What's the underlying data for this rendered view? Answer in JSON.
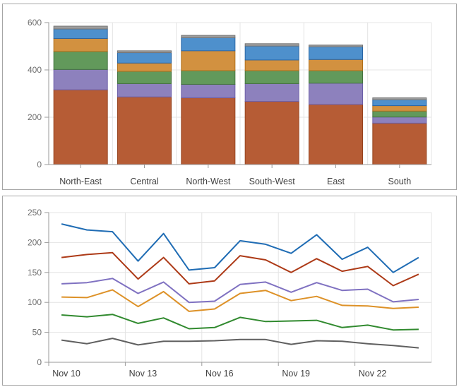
{
  "page": {
    "background": "#ffffff",
    "panel_border_color": "#a6a6a6"
  },
  "axis_style": {
    "grid_color": "#e4e4e4",
    "axis_color": "#9a9a9a",
    "tick_color": "#9a9a9a",
    "number_label_color": "#6e6e6e",
    "category_label_color": "#404040"
  },
  "chart_data": [
    {
      "id": "stacked-bar",
      "type": "bar",
      "stacked": true,
      "title": "",
      "legend": "none",
      "grid": true,
      "categories": [
        "North-East",
        "Central",
        "North-West",
        "South-West",
        "East",
        "South"
      ],
      "series": [
        {
          "name": "rust",
          "color": "#b65c35",
          "border": "#96441f",
          "values": [
            316,
            286,
            282,
            267,
            254,
            175
          ]
        },
        {
          "name": "purple",
          "color": "#8d81bd",
          "border": "#6c5fa7",
          "values": [
            86,
            56,
            57,
            75,
            90,
            26
          ]
        },
        {
          "name": "green",
          "color": "#62995b",
          "border": "#457440",
          "values": [
            76,
            52,
            58,
            55,
            53,
            25
          ]
        },
        {
          "name": "orange",
          "color": "#d29140",
          "border": "#b06f1a",
          "values": [
            55,
            35,
            84,
            45,
            47,
            23
          ]
        },
        {
          "name": "blue",
          "color": "#4e90cc",
          "border": "#2a66a5",
          "values": [
            40,
            44,
            55,
            59,
            54,
            25
          ]
        },
        {
          "name": "gray",
          "color": "#9d9d9d",
          "border": "#757575",
          "values": [
            12,
            8,
            10,
            10,
            7,
            8
          ]
        }
      ],
      "ylim": [
        0,
        600
      ],
      "yticks": [
        0,
        200,
        400,
        600
      ],
      "xlabel": "",
      "ylabel": ""
    },
    {
      "id": "multi-line",
      "type": "line",
      "title": "",
      "legend": "none",
      "grid": true,
      "n_points": 15,
      "points_per_tick": 3,
      "x_tick_labels": [
        "Nov 10",
        "Nov 13",
        "Nov 16",
        "Nov 19",
        "Nov 22"
      ],
      "series": [
        {
          "name": "blue",
          "color": "#1f6cb4",
          "values": [
            231,
            221,
            218,
            169,
            215,
            154,
            158,
            203,
            197,
            182,
            213,
            172,
            192,
            150,
            175
          ]
        },
        {
          "name": "red",
          "color": "#ad3a17",
          "values": [
            175,
            180,
            183,
            139,
            175,
            131,
            136,
            178,
            171,
            150,
            173,
            152,
            160,
            128,
            147
          ]
        },
        {
          "name": "purple",
          "color": "#7f71c1",
          "values": [
            131,
            133,
            140,
            115,
            134,
            100,
            102,
            130,
            134,
            117,
            133,
            120,
            122,
            101,
            105
          ]
        },
        {
          "name": "orange",
          "color": "#dd9127",
          "values": [
            109,
            108,
            121,
            93,
            118,
            85,
            89,
            115,
            120,
            103,
            110,
            95,
            94,
            90,
            92
          ]
        },
        {
          "name": "green",
          "color": "#318a2f",
          "values": [
            79,
            76,
            80,
            65,
            74,
            56,
            58,
            75,
            68,
            69,
            70,
            58,
            62,
            54,
            55
          ]
        },
        {
          "name": "gray",
          "color": "#606060",
          "values": [
            37,
            31,
            40,
            29,
            35,
            35,
            36,
            38,
            38,
            30,
            36,
            35,
            31,
            28,
            24
          ]
        }
      ],
      "ylim": [
        0,
        250
      ],
      "yticks": [
        0,
        50,
        100,
        150,
        200,
        250
      ],
      "xlabel": "",
      "ylabel": ""
    }
  ]
}
